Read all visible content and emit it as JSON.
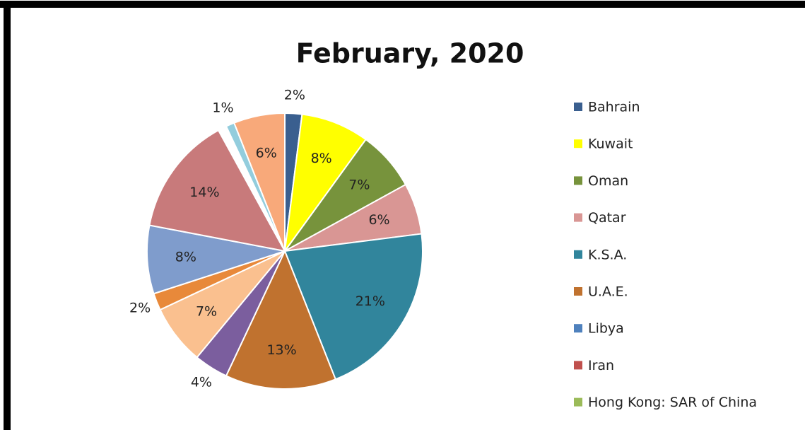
{
  "chart_data": {
    "type": "pie",
    "title": "February, 2020",
    "categories": [
      "Bahrain",
      "Kuwait",
      "Oman",
      "Qatar",
      "K.S.A.",
      "U.A.E.",
      null,
      null,
      null,
      null,
      null,
      null,
      null,
      null
    ],
    "values": [
      2,
      8,
      7,
      6,
      21,
      13,
      4,
      7,
      2,
      8,
      14,
      1,
      1,
      6
    ],
    "value_labels": [
      "2%",
      "8%",
      "7%",
      "6%",
      "21%",
      "13%",
      "4%",
      "7%",
      "2%",
      "8%",
      "14%",
      null,
      "1%",
      "6%"
    ],
    "colors": [
      "#3a5f8f",
      "#ffff00",
      "#77933c",
      "#d99694",
      "#31859c",
      "#c0722f",
      "#7b5e9e",
      "#fac08f",
      "#e8893a",
      "#7f9ccc",
      "#c87a7b",
      "#ffffff",
      "#93cddd",
      "#f8a97a"
    ],
    "legend": [
      {
        "name": "Bahrain",
        "color": "#3a5f8f"
      },
      {
        "name": "Kuwait",
        "color": "#ffff00"
      },
      {
        "name": "Oman",
        "color": "#77933c"
      },
      {
        "name": "Qatar",
        "color": "#d99694"
      },
      {
        "name": "K.S.A.",
        "color": "#31859c"
      },
      {
        "name": "U.A.E.",
        "color": "#c0722f"
      },
      {
        "name": "Libya",
        "color": "#4f81bd"
      },
      {
        "name": "Iran",
        "color": "#c0504d"
      },
      {
        "name": "Hong Kong: SAR of China",
        "color": "#9bbb59"
      }
    ]
  }
}
